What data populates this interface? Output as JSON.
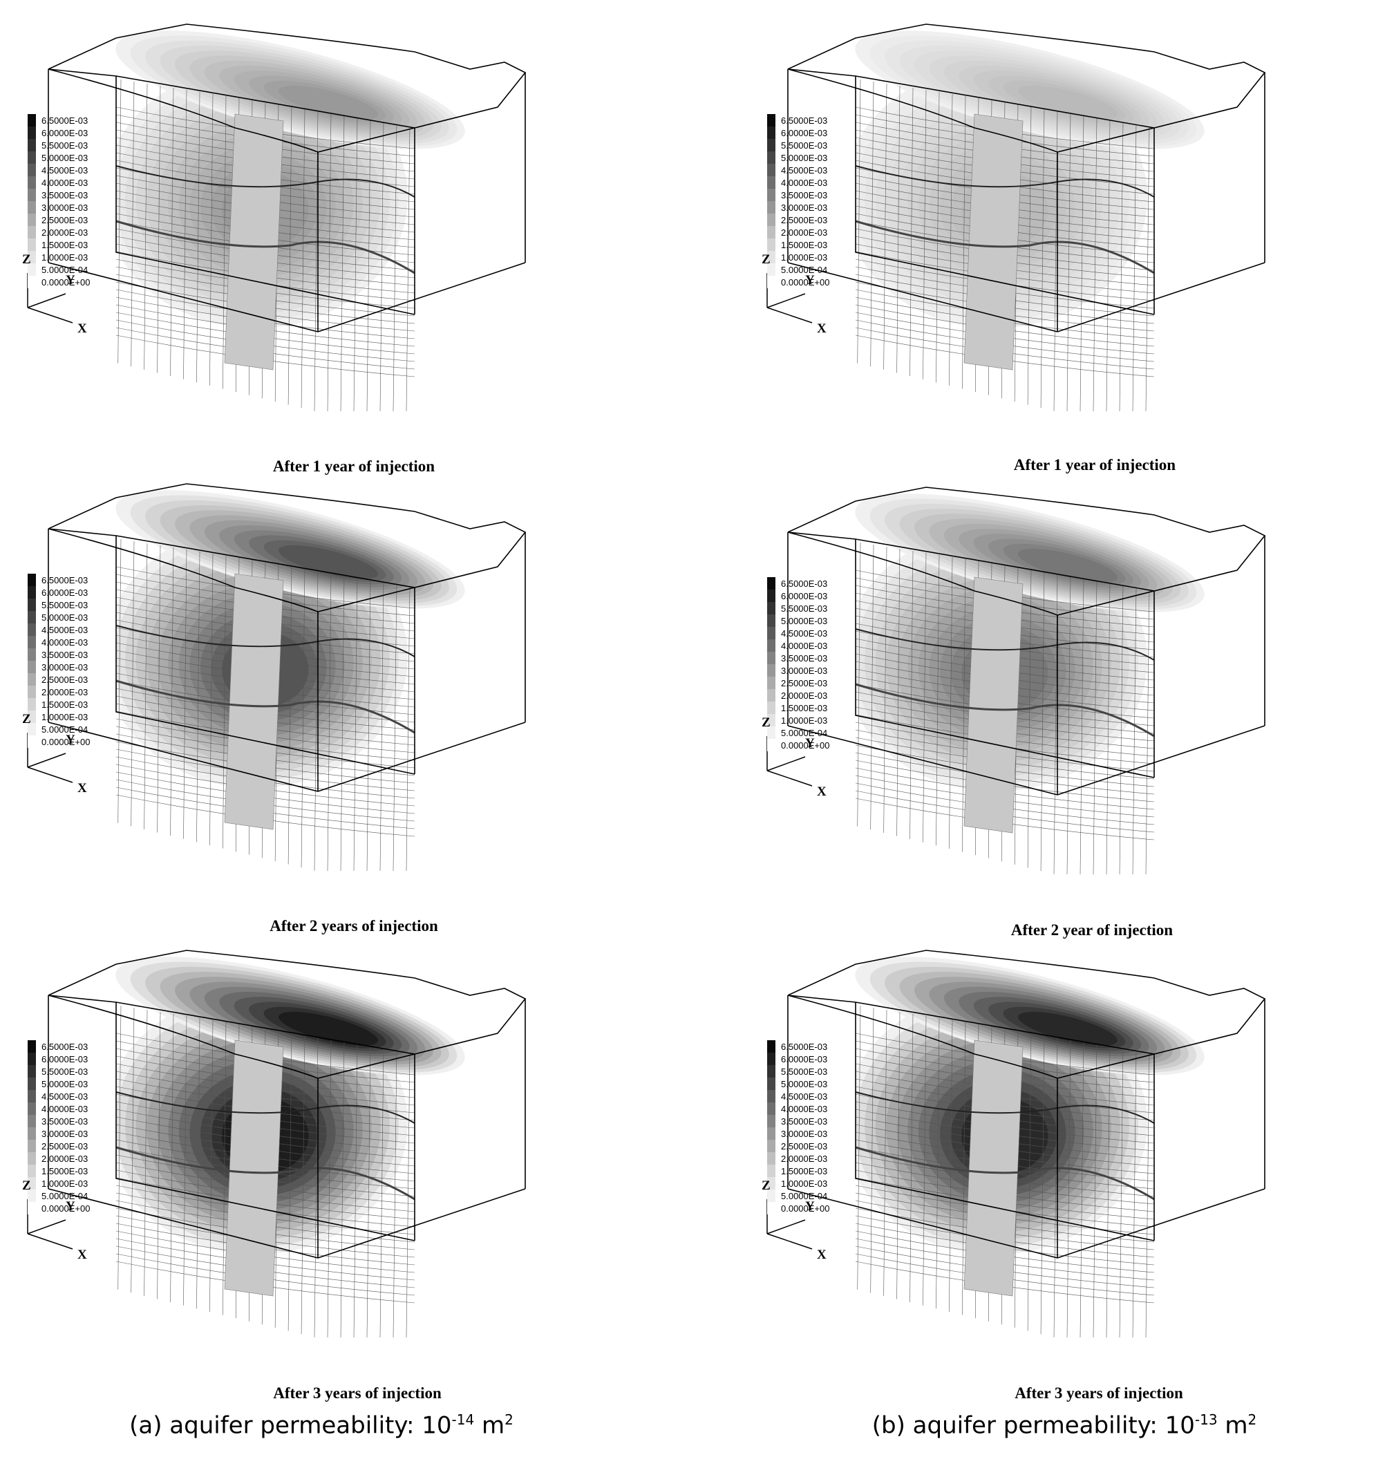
{
  "legend": {
    "labels": [
      "6.5000E-03",
      "6.0000E-03",
      "5.5000E-03",
      "5.0000E-03",
      "4.5000E-03",
      "4.0000E-03",
      "3.5000E-03",
      "3.0000E-03",
      "2.5000E-03",
      "2.0000E-03",
      "1.5000E-03",
      "1.0000E-03",
      "5.0000E-04",
      "0.0000E+00"
    ],
    "colors": [
      "#0a0a0a",
      "#1e1e1e",
      "#323232",
      "#474747",
      "#5b5b5b",
      "#6f6f6f",
      "#838383",
      "#979797",
      "#ababab",
      "#bfbfbf",
      "#d3d3d3",
      "#e3e3e3",
      "#f1f1f1",
      "#ffffff"
    ]
  },
  "axes": {
    "z": "Z",
    "y": "Y",
    "x": "X"
  },
  "columns": [
    {
      "caption_prefix": "(a) aquifer permeability: 10",
      "exponent": "-14",
      "unit": " m",
      "unit_power": "2",
      "panels": [
        {
          "caption": "After 1 year of injection",
          "intensity": 0.45
        },
        {
          "caption": "After 2 years of injection",
          "intensity": 0.75
        },
        {
          "caption": "After 3 years of injection",
          "intensity": 1.0
        }
      ]
    },
    {
      "caption_prefix": "(b) aquifer permeability: 10",
      "exponent": "-13",
      "unit": " m",
      "unit_power": "2",
      "panels": [
        {
          "caption": "After 1 year of injection",
          "intensity": 0.3
        },
        {
          "caption": "After 2 year of injection",
          "intensity": 0.6
        },
        {
          "caption": "After 3 years of injection",
          "intensity": 0.95
        }
      ]
    }
  ]
}
